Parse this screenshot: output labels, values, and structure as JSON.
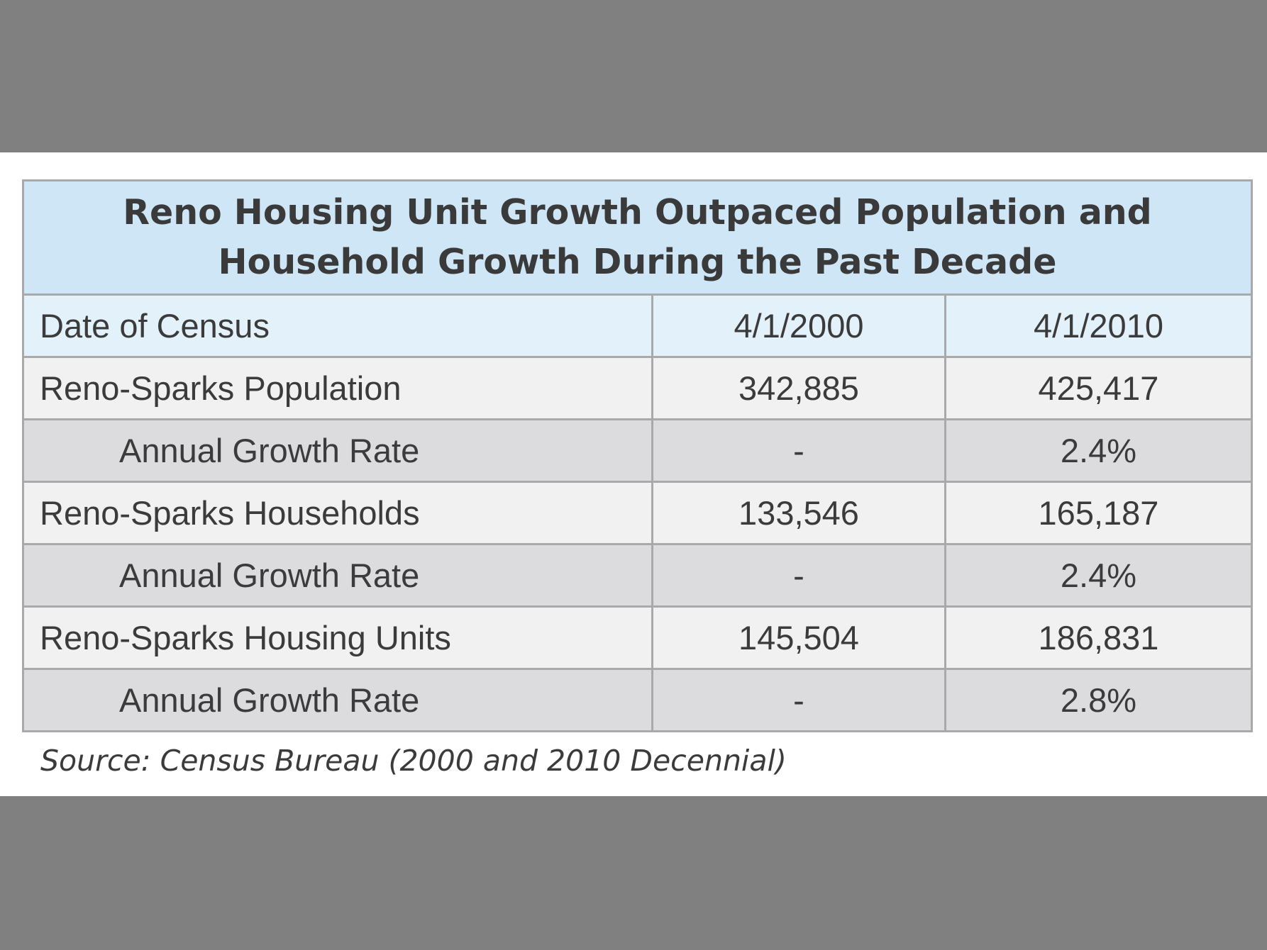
{
  "chart_data": {
    "type": "table",
    "title": "Reno Housing Unit Growth Outpaced Population and Household Growth During the Past Decade",
    "header": [
      "Date of Census",
      "4/1/2000",
      "4/1/2010"
    ],
    "rows": [
      {
        "label": "Reno-Sparks Population",
        "kind": "main",
        "values": [
          "342,885",
          "425,417"
        ]
      },
      {
        "label": "Annual Growth Rate",
        "kind": "sub",
        "values": [
          "-",
          "2.4%"
        ]
      },
      {
        "label": "Reno-Sparks Households",
        "kind": "main",
        "values": [
          "133,546",
          "165,187"
        ]
      },
      {
        "label": "Annual Growth Rate",
        "kind": "sub",
        "values": [
          "-",
          "2.4%"
        ]
      },
      {
        "label": "Reno-Sparks Housing Units",
        "kind": "main",
        "values": [
          "145,504",
          "186,831"
        ]
      },
      {
        "label": "Annual Growth Rate",
        "kind": "sub",
        "values": [
          "-",
          "2.8%"
        ]
      }
    ],
    "source": "Source: Census Bureau (2000 and 2010 Decennial)",
    "colors": {
      "title_bg": "#cfe6f7",
      "header_bg": "#e3f1fb",
      "main_row_bg": "#f1f1f1",
      "sub_row_bg": "#dcdcde",
      "border": "#a9a9a9",
      "text": "#3b3b3b"
    }
  }
}
